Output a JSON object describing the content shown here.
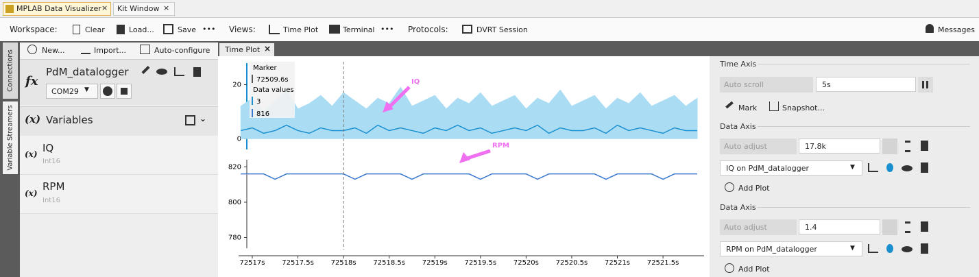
{
  "tabs": [
    "MPLAB Data Visualizer",
    "Kit Window"
  ],
  "toolbar": {
    "workspace_label": "Workspace:",
    "clear": "Clear",
    "load": "Load...",
    "save": "Save",
    "more1": "•••",
    "views_label": "Views:",
    "time_plot": "Time Plot",
    "terminal": "Terminal",
    "more2": "•••",
    "protocols_label": "Protocols:",
    "dvrt": "DVRT Session",
    "messages": "Messages"
  },
  "side_tabs": [
    "Connections",
    "Variable Streamers"
  ],
  "left_panel": {
    "new": "New...",
    "import": "Import...",
    "autoconf": "Auto-configure",
    "fx": "fx",
    "source": "PdM_datalogger",
    "port": "COM29",
    "variables_icon": "(x)",
    "variables": "Variables",
    "items": [
      {
        "icon": "(x)",
        "name": "IQ",
        "type": "Int16"
      },
      {
        "icon": "(x)",
        "name": "RPM",
        "type": "Int16"
      }
    ]
  },
  "plot_tab": "Time Plot",
  "time_plot": {
    "x": [
      72516.875,
      72517,
      72517.125,
      72517.25,
      72517.375,
      72517.5,
      72517.625,
      72517.75,
      72517.875,
      72518,
      72518.125,
      72518.25,
      72518.375,
      72518.5,
      72518.625,
      72518.75,
      72518.875,
      72519,
      72519.125,
      72519.25,
      72519.375,
      72519.5,
      72519.625,
      72519.75,
      72519.875,
      72520,
      72520.125,
      72520.25,
      72520.375,
      72520.5,
      72520.625,
      72520.75,
      72520.875,
      72521,
      72521.125,
      72521.25,
      72521.375,
      72521.5,
      72521.625,
      72521.75,
      72521.875
    ],
    "xlim": [
      72516.85,
      72521.95
    ],
    "xticks": [
      {
        "value": 72517,
        "label": "72517s"
      },
      {
        "value": 72517.5,
        "label": "72517.5s"
      },
      {
        "value": 72518,
        "label": "72518s"
      },
      {
        "value": 72518.5,
        "label": "72518.5s"
      },
      {
        "value": 72519,
        "label": "72519s"
      },
      {
        "value": 72519.5,
        "label": "72519.5s"
      },
      {
        "value": 72520,
        "label": "72520s"
      },
      {
        "value": 72520.5,
        "label": "72520.5s"
      },
      {
        "value": 72521,
        "label": "72521s"
      },
      {
        "value": 72521.5,
        "label": "72521.5s"
      }
    ],
    "marker": {
      "title": "Marker",
      "time": "72509.6s",
      "values_title": "Data values",
      "values": [
        3,
        816
      ],
      "x": 72518
    },
    "plots": [
      {
        "name": "IQ",
        "color": "#1a8fd0",
        "band_color": "#aadcf3",
        "ylim": [
          -4,
          28
        ],
        "yticks": [
          0,
          20
        ],
        "values": [
          3,
          4,
          2,
          3,
          5,
          3,
          2,
          4,
          3,
          3,
          4,
          2,
          5,
          3,
          4,
          3,
          2,
          4,
          3,
          5,
          3,
          4,
          2,
          3,
          4,
          3,
          5,
          2,
          4,
          3,
          3,
          4,
          2,
          5,
          3,
          4,
          3,
          2,
          4,
          3,
          3
        ],
        "peaks": [
          12,
          15,
          10,
          14,
          18,
          11,
          13,
          16,
          12,
          17,
          14,
          11,
          15,
          13,
          19,
          12,
          14,
          16,
          11,
          15,
          13,
          17,
          12,
          14,
          16,
          11,
          15,
          13,
          18,
          12,
          14,
          16,
          11,
          15,
          13,
          17,
          12,
          14,
          16,
          12,
          15
        ]
      },
      {
        "name": "RPM",
        "color": "#3a78d0",
        "ylim": [
          774,
          824
        ],
        "yticks": [
          780,
          800,
          820
        ],
        "values": [
          816,
          816,
          816,
          813,
          816,
          816,
          816,
          816,
          816,
          816,
          813,
          816,
          816,
          816,
          816,
          813,
          816,
          816,
          816,
          816,
          816,
          813,
          816,
          816,
          816,
          816,
          813,
          816,
          816,
          816,
          816,
          816,
          813,
          816,
          816,
          816,
          816,
          813,
          816,
          816,
          816
        ]
      }
    ]
  },
  "right_panel": {
    "time_axis": "Time Axis",
    "auto_scroll": "Auto scroll",
    "scroll_value": "5s",
    "mark": "Mark",
    "snapshot": "Snapshot...",
    "axes": [
      {
        "title": "Data Axis",
        "auto": "Auto adjust",
        "value": "17.8k",
        "plot": "IQ on PdM_datalogger",
        "add": "Add Plot"
      },
      {
        "title": "Data Axis",
        "auto": "Auto adjust",
        "value": "1.4",
        "plot": "RPM on PdM_datalogger",
        "add": "Add Plot"
      }
    ]
  }
}
